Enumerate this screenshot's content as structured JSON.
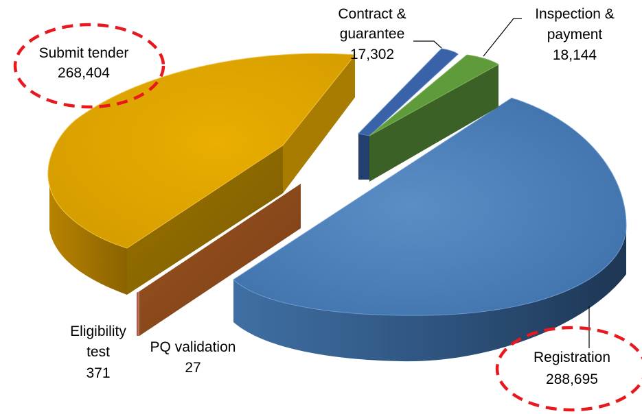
{
  "chart_data": {
    "type": "pie",
    "style": "3d-exploded",
    "slices": [
      {
        "name": "Registration",
        "value": 288695,
        "value_label": "288,695",
        "color": "#4f81bd",
        "highlighted": true
      },
      {
        "name": "Submit tender",
        "value": 268404,
        "value_label": "268,404",
        "color": "#e0a800",
        "highlighted": true
      },
      {
        "name": "Contract & guarantee",
        "value": 17302,
        "value_label": "17,302",
        "color": "#3a62a8",
        "highlighted": false
      },
      {
        "name": "Inspection & payment",
        "value": 18144,
        "value_label": "18,144",
        "color": "#5f9a3b",
        "highlighted": false
      },
      {
        "name": "Eligibility test",
        "value": 371,
        "value_label": "371",
        "color": "#8b4a1f",
        "highlighted": false
      },
      {
        "name": "PQ validation",
        "value": 27,
        "value_label": "27",
        "color": "#c0504d",
        "highlighted": false
      }
    ],
    "labels": {
      "contract": {
        "line1": "Contract &",
        "line2": "guarantee",
        "line3": "17,302"
      },
      "inspection": {
        "line1": "Inspection &",
        "line2": "payment",
        "line3": "18,144"
      },
      "submit": {
        "line1": "Submit tender",
        "line2": "268,404"
      },
      "registration": {
        "line1": "Registration",
        "line2": "288,695"
      },
      "eligibility": {
        "line1": "Eligibility",
        "line2": "test",
        "line3": "371"
      },
      "pq": {
        "line1": "PQ validation",
        "line2": "27"
      }
    },
    "highlight_color": "#e8191e",
    "title": "",
    "legend": "none"
  }
}
